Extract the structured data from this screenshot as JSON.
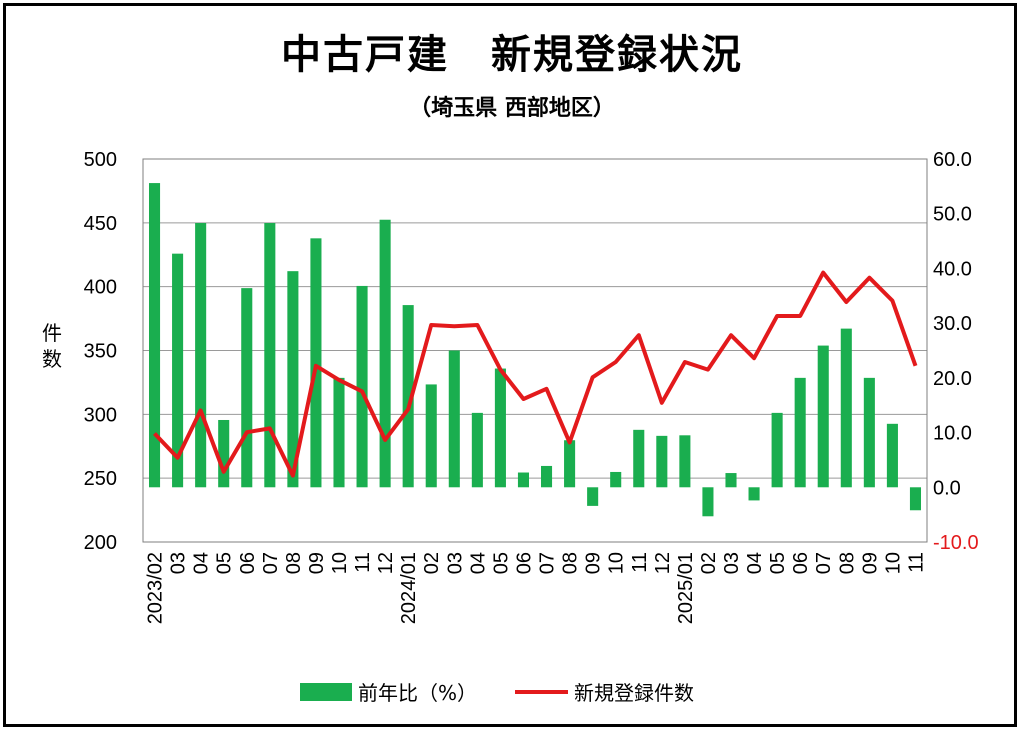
{
  "chart_data": {
    "type": "bar+line",
    "title": "中古戸建　新規登録状況",
    "subtitle": "（埼玉県 西部地区）",
    "ylabel": "件数",
    "ylim_left": [
      200,
      500
    ],
    "ylim_right": [
      -10,
      60
    ],
    "left_ticks": [
      "500",
      "450",
      "400",
      "350",
      "300",
      "250",
      "200"
    ],
    "right_ticks": [
      "60.0",
      "50.0",
      "40.0",
      "30.0",
      "20.0",
      "10.0",
      "0.0",
      "-10.0"
    ],
    "right_tick_colors": [
      "#000000",
      "#000000",
      "#000000",
      "#000000",
      "#000000",
      "#000000",
      "#000000",
      "#e31a1c"
    ],
    "categories": [
      "2023/02",
      "03",
      "04",
      "05",
      "06",
      "07",
      "08",
      "09",
      "10",
      "11",
      "12",
      "2024/01",
      "02",
      "03",
      "04",
      "05",
      "06",
      "07",
      "08",
      "09",
      "10",
      "11",
      "12",
      "2025/01",
      "02",
      "03",
      "04",
      "05",
      "06",
      "07",
      "08",
      "09",
      "10",
      "11"
    ],
    "grid": true,
    "legend_position": "bottom",
    "series": [
      {
        "name": "前年比（%）",
        "type": "bar",
        "axis": "right",
        "color": "#1aae4f",
        "values": [
          55.6,
          42.7,
          48.3,
          12.3,
          36.4,
          48.3,
          39.5,
          45.5,
          20.0,
          36.8,
          48.9,
          33.3,
          18.8,
          25.0,
          13.6,
          21.7,
          2.7,
          3.9,
          8.6,
          -3.4,
          2.8,
          10.5,
          9.4,
          9.5,
          -5.3,
          2.6,
          -2.4,
          13.6,
          20.0,
          25.9,
          29.0,
          20.0,
          11.6,
          -4.2
        ]
      },
      {
        "name": "新規登録件数",
        "type": "line",
        "axis": "left",
        "color": "#e31a1c",
        "values": [
          285,
          266,
          303,
          255,
          286,
          289,
          252,
          338,
          327,
          318,
          280,
          304,
          370,
          369,
          370,
          335,
          312,
          320,
          278,
          329,
          341,
          362,
          309,
          341,
          335,
          362,
          344,
          377,
          377,
          411,
          388,
          407,
          389,
          338
        ]
      }
    ]
  }
}
